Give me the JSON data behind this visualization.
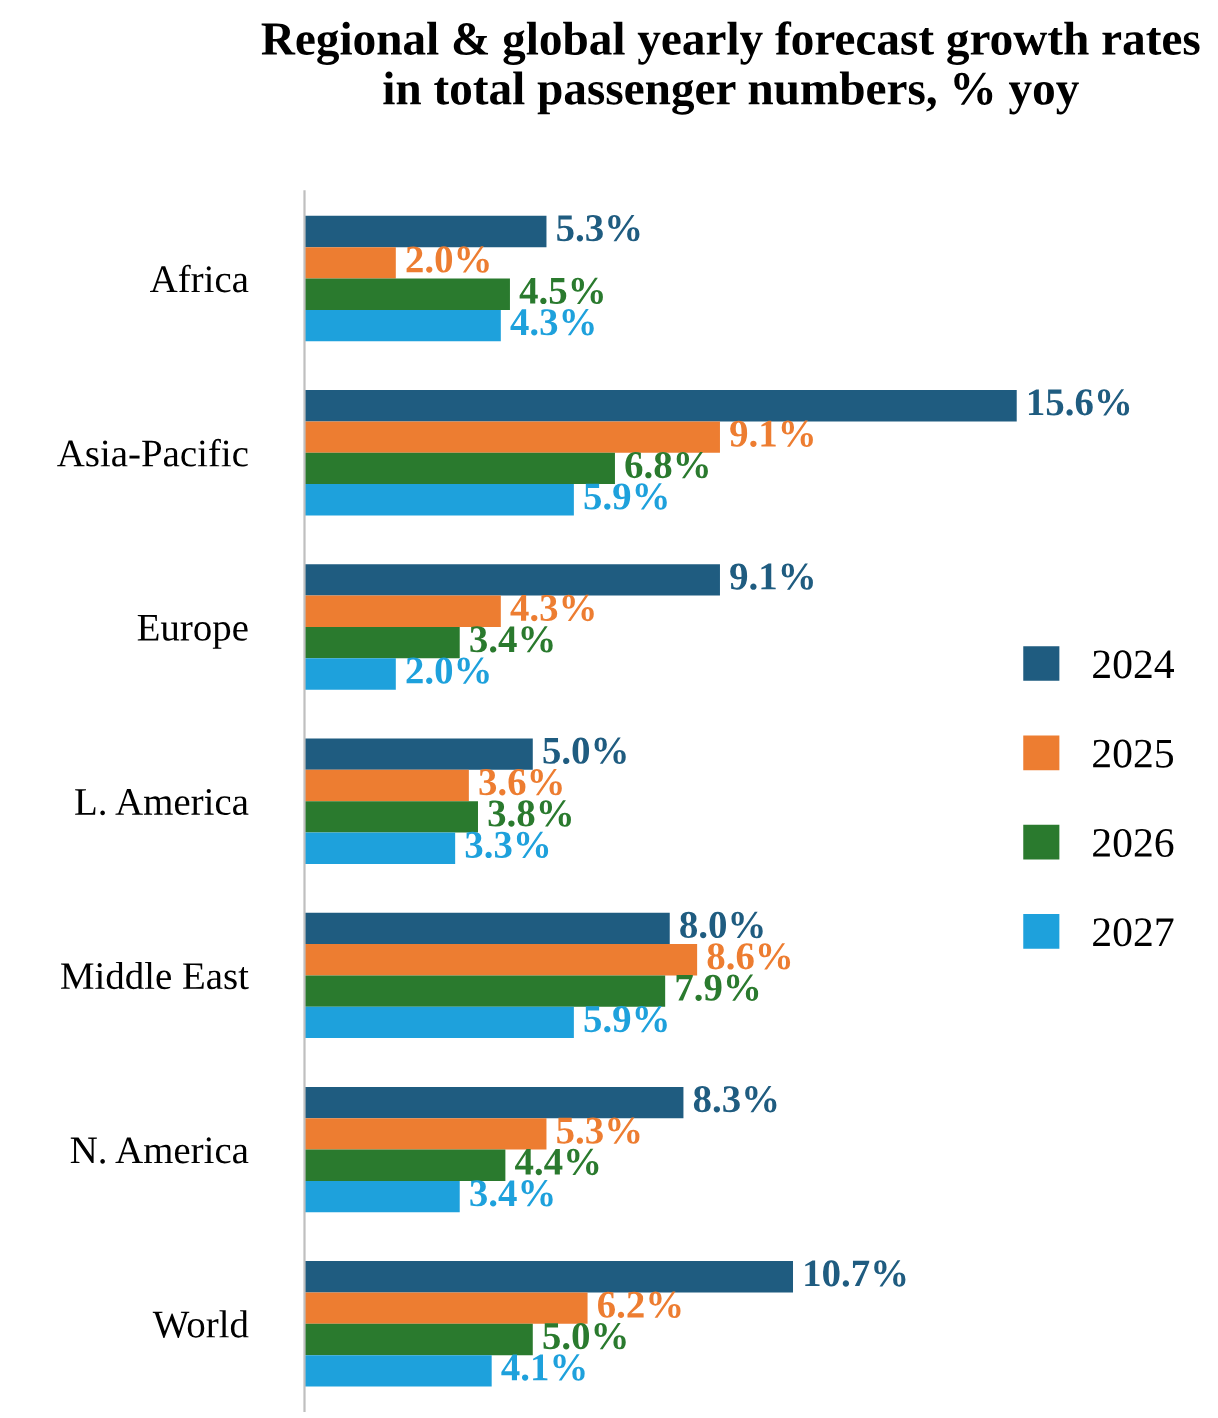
{
  "chart_data": {
    "type": "bar",
    "orientation": "horizontal",
    "title": "Regional & global yearly forecast growth rates in total passenger numbers, % yoy",
    "categories": [
      "Africa",
      "Asia-Pacific",
      "Europe",
      "L. America",
      "Middle East",
      "N. America",
      "World"
    ],
    "series": [
      {
        "name": "2024",
        "color": "#1f5c80",
        "values": [
          5.3,
          15.6,
          9.1,
          5.0,
          8.0,
          8.3,
          10.7
        ],
        "value_labels": [
          "5.3%",
          "15.6%",
          "9.1%",
          "5.0%",
          "8.0%",
          "8.3%",
          "10.7%"
        ]
      },
      {
        "name": "2025",
        "color": "#ed7d31",
        "values": [
          2.0,
          9.1,
          4.3,
          3.6,
          8.6,
          5.3,
          6.2
        ],
        "value_labels": [
          "2.0%",
          "9.1%",
          "4.3%",
          "3.6%",
          "8.6%",
          "5.3%",
          "6.2%"
        ]
      },
      {
        "name": "2026",
        "color": "#2a7a2e",
        "values": [
          4.5,
          6.8,
          3.4,
          3.8,
          7.9,
          4.4,
          5.0
        ],
        "value_labels": [
          "4.5%",
          "6.8%",
          "3.4%",
          "3.8%",
          "7.9%",
          "4.4%",
          "5.0%"
        ]
      },
      {
        "name": "2027",
        "color": "#1ea1dc",
        "values": [
          4.3,
          5.9,
          2.0,
          3.3,
          5.9,
          3.4,
          4.1
        ],
        "value_labels": [
          "4.3%",
          "5.9%",
          "2.0%",
          "3.3%",
          "5.9%",
          "3.4%",
          "4.1%"
        ]
      }
    ],
    "legend": "right",
    "grid": false
  }
}
